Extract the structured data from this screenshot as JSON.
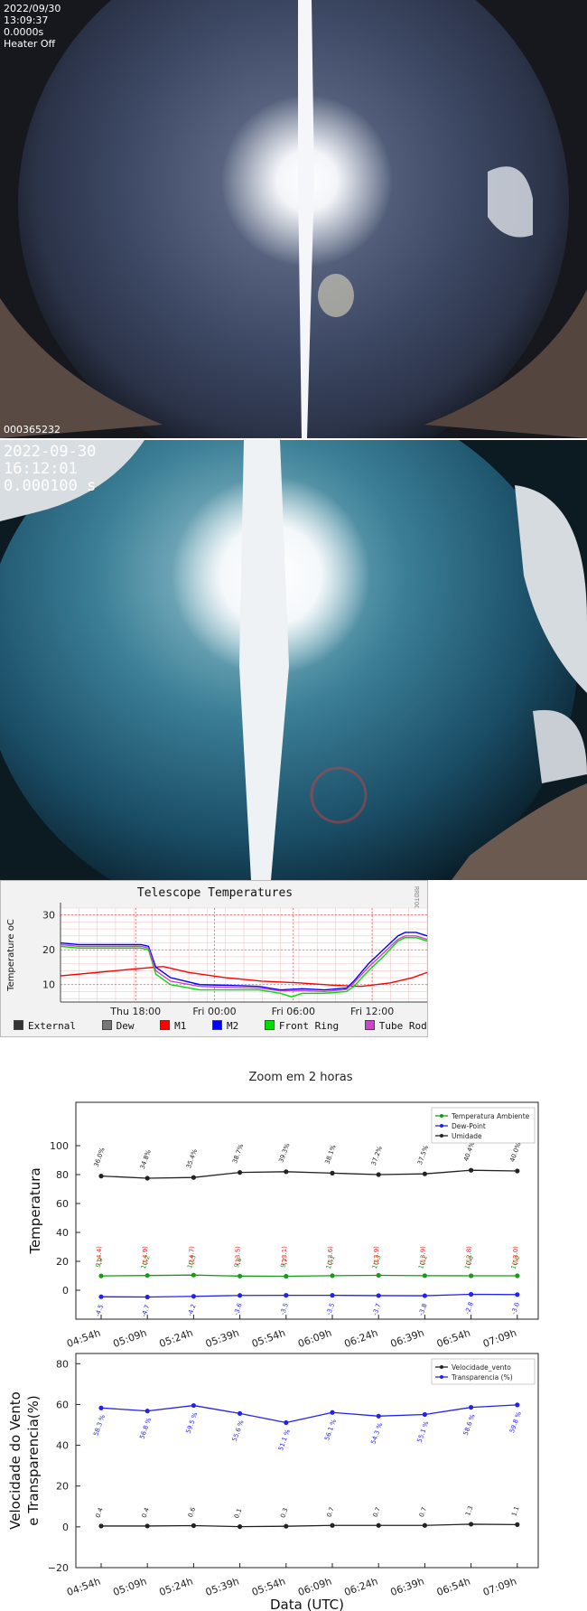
{
  "camera1": {
    "date": "2022/09/30",
    "time": "13:09:37",
    "exposure": "0.0000s",
    "heater": "Heater Off",
    "frame_id": "000365232"
  },
  "camera2": {
    "date": "2022-09-30",
    "time": "16:12:01",
    "exposure": "0.000100 s"
  },
  "telescope_temps": {
    "chart_data": {
      "type": "line",
      "title": "Telescope Temperatures",
      "ylabel": "Temperature oC",
      "side_label": "RRDTOOL / TOBI OETIKER",
      "ylim": [
        5,
        32
      ],
      "y_ticks": [
        "30",
        "20",
        "10"
      ],
      "x_ticks": [
        "Thu 18:00",
        "Fri 00:00",
        "Fri 06:00",
        "Fri 12:00"
      ],
      "legend": [
        "External",
        "Dew",
        "M1",
        "M2",
        "Front Ring",
        "Tube Rod"
      ],
      "colors": {
        "External": "#333333",
        "Dew": "#777777",
        "M1": "#ff0000",
        "M2": "#0000ff",
        "Front Ring": "#00dd00",
        "Tube Rod": "#cc44cc"
      },
      "series": [
        {
          "name": "M1",
          "x": [
            0,
            0.1,
            0.2,
            0.28,
            0.35,
            0.45,
            0.55,
            0.65,
            0.75,
            0.82,
            0.9,
            0.96,
            1
          ],
          "values": [
            12.5,
            13.5,
            14.5,
            15.2,
            13.5,
            12,
            11,
            10.5,
            9.8,
            9.5,
            10.5,
            12,
            13.5
          ]
        },
        {
          "name": "M2",
          "x": [
            0,
            0.05,
            0.15,
            0.22,
            0.24,
            0.26,
            0.3,
            0.38,
            0.46,
            0.54,
            0.6,
            0.66,
            0.72,
            0.78,
            0.8,
            0.84,
            0.88,
            0.92,
            0.94,
            0.97,
            1
          ],
          "values": [
            22,
            21.5,
            21.5,
            21.5,
            21,
            15,
            12,
            10,
            9.8,
            9.5,
            8.5,
            8.8,
            8.5,
            9,
            11,
            16,
            20,
            24,
            25,
            25,
            24
          ]
        },
        {
          "name": "Front Ring",
          "x": [
            0,
            0.05,
            0.15,
            0.22,
            0.24,
            0.26,
            0.3,
            0.38,
            0.46,
            0.54,
            0.6,
            0.63,
            0.66,
            0.72,
            0.78,
            0.8,
            0.84,
            0.88,
            0.92,
            0.94,
            0.97,
            1
          ],
          "values": [
            21,
            20.5,
            20.5,
            20.5,
            20,
            13,
            10,
            8.5,
            8.5,
            8.5,
            7.5,
            6.5,
            7.5,
            7.5,
            8,
            9.5,
            14,
            18,
            22.5,
            23.5,
            23.5,
            22.5
          ]
        },
        {
          "name": "Tube Rod",
          "x": [
            0,
            0.05,
            0.15,
            0.22,
            0.24,
            0.26,
            0.3,
            0.38,
            0.46,
            0.54,
            0.6,
            0.66,
            0.72,
            0.78,
            0.8,
            0.84,
            0.88,
            0.92,
            0.94,
            0.97,
            1
          ],
          "values": [
            21.5,
            21,
            21,
            21,
            20.5,
            14,
            11,
            9.5,
            9.2,
            9,
            8.2,
            8.3,
            8,
            8.6,
            10.5,
            15,
            19,
            23,
            24,
            24,
            23
          ]
        }
      ]
    }
  },
  "zoom_chart": {
    "title": "Zoom em 2 horas",
    "x_ticks": [
      "04:54h",
      "05:09h",
      "05:24h",
      "05:39h",
      "05:54h",
      "06:09h",
      "06:24h",
      "06:39h",
      "06:54h",
      "07:09h"
    ],
    "top": {
      "chart_data": {
        "type": "line",
        "ylabel": "Temperatura",
        "ylim": [
          -20,
          130
        ],
        "y_ticks": [
          "100",
          "80",
          "60",
          "40",
          "20",
          "0"
        ],
        "legend": [
          "Temperatura Ambiente",
          "Dew-Point",
          "Umidade"
        ],
        "series": [
          {
            "name": "Umidade",
            "color": "#222222",
            "values": [
              79,
              77.5,
              78,
              81.5,
              82,
              81,
              80,
              80.5,
              83,
              82.5
            ],
            "labels": [
              "36.0%",
              "34.8%",
              "35.4%",
              "38.7%",
              "39.3%",
              "38.1%",
              "37.2%",
              "37.5%",
              "40.4%",
              "40.0%"
            ]
          },
          {
            "name": "Temperatura Ambiente",
            "color": "#1a9a1a",
            "values": [
              9.9,
              10.2,
              10.5,
              9.8,
              9.7,
              10.1,
              10.3,
              10.1,
              10.0,
              10.0
            ],
            "labels": [
              "9.9",
              "10.2",
              "10.5",
              "9.8",
              "9.7",
              "10.1",
              "10.3",
              "10.1",
              "10.0",
              "10.0"
            ]
          },
          {
            "name": "Dew-Point",
            "color": "#2222ee",
            "values": [
              -4.5,
              -4.7,
              -4.2,
              -3.6,
              -3.5,
              -3.5,
              -3.7,
              -3.8,
              -2.8,
              -3.0
            ],
            "labels": [
              "-4.5",
              "-4.7",
              "-4.2",
              "-3.6",
              "-3.5",
              "-3.5",
              "-3.7",
              "-3.8",
              "-2.8",
              "-3.0"
            ]
          }
        ],
        "red_labels": [
          "(14.4)",
          "(14.9)",
          "(14.7)",
          "(13.5)",
          "(13.1)",
          "(13.6)",
          "(13.9)",
          "(13.9)",
          "(12.8)",
          "(13.0)"
        ]
      }
    },
    "bottom": {
      "chart_data": {
        "type": "line",
        "ylabel": "Velocidade do Vento\ne Transparencia(%)",
        "xlabel": "Data (UTC)",
        "ylim": [
          -20,
          85
        ],
        "y_ticks": [
          "80",
          "60",
          "40",
          "20",
          "0",
          "−20"
        ],
        "legend": [
          "Velocidade_vento",
          "Transparencia (%)"
        ],
        "series": [
          {
            "name": "Transparencia (%)",
            "color": "#2222ee",
            "values": [
              58.3,
              56.8,
              59.5,
              55.6,
              51.1,
              56.1,
              54.3,
              55.1,
              58.6,
              59.8
            ],
            "labels": [
              "58.3 %",
              "56.8 %",
              "59.5 %",
              "55.6 %",
              "51.1 %",
              "56.1 %",
              "54.3 %",
              "55.1 %",
              "58.6 %",
              "59.8 %"
            ]
          },
          {
            "name": "Velocidade_vento",
            "color": "#222222",
            "values": [
              0.4,
              0.4,
              0.6,
              0.1,
              0.3,
              0.7,
              0.7,
              0.7,
              1.3,
              1.1
            ],
            "labels": [
              "0.4",
              "0.4",
              "0.6",
              "0.1",
              "0.3",
              "0.7",
              "0.7",
              "0.7",
              "1.3",
              "1.1"
            ]
          }
        ]
      }
    }
  }
}
